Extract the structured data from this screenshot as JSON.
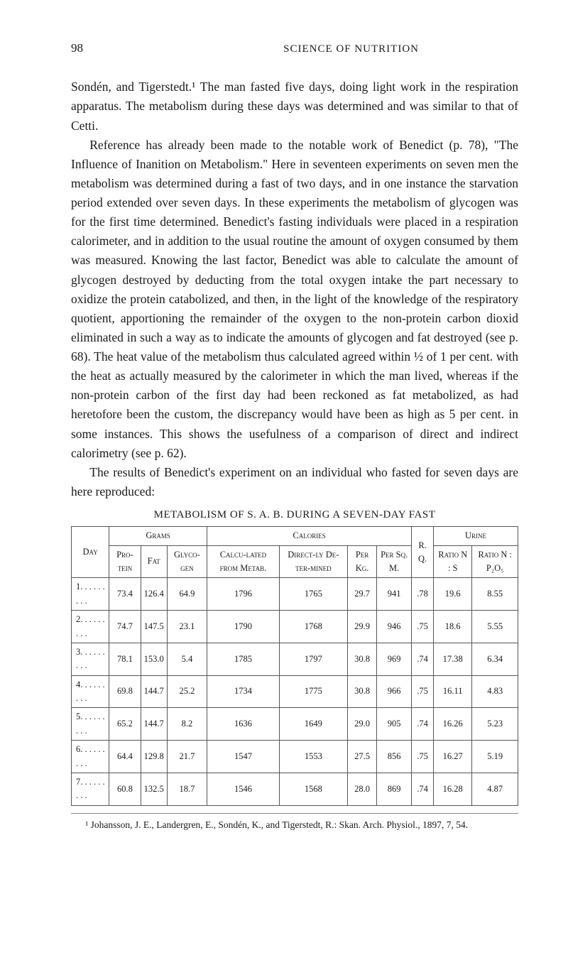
{
  "page_number": "98",
  "running_head": "SCIENCE OF NUTRITION",
  "paragraphs": {
    "p1": "Sondén, and Tigerstedt.¹ The man fasted five days, doing light work in the respiration apparatus. The metabolism during these days was determined and was similar to that of Cetti.",
    "p2": "Reference has already been made to the notable work of Benedict (p. 78), \"The Influence of Inanition on Metabolism.\" Here in seventeen experiments on seven men the metabolism was determined during a fast of two days, and in one instance the starvation period extended over seven days. In these experiments the metabolism of glycogen was for the first time determined. Benedict's fasting individuals were placed in a respiration calorimeter, and in addition to the usual routine the amount of oxygen consumed by them was measured. Knowing the last factor, Benedict was able to calculate the amount of glycogen destroyed by deducting from the total oxygen intake the part necessary to oxidize the protein catabolized, and then, in the light of the knowledge of the respiratory quotient, apportioning the remainder of the oxygen to the non-protein carbon dioxid eliminated in such a way as to indicate the amounts of glycogen and fat destroyed (see p. 68). The heat value of the metabolism thus calculated agreed within ½ of 1 per cent. with the heat as actually measured by the calorimeter in which the man lived, whereas if the non-protein carbon of the first day had been reckoned as fat metabolized, as had heretofore been the custom, the discrepancy would have been as high as 5 per cent. in some instances. This shows the usefulness of a comparison of direct and indirect calorimetry (see p. 62).",
    "p3": "The results of Benedict's experiment on an individual who fasted for seven days are here reproduced:"
  },
  "table_title": "METABOLISM OF S. A. B. DURING A SEVEN-DAY FAST",
  "table": {
    "group_headers": {
      "grams": "Grams",
      "calories": "Calories",
      "urine": "Urine"
    },
    "columns": {
      "day": "Day",
      "protein": "Pro-tein",
      "fat": "Fat",
      "glycogen": "Glyco-gen",
      "calc": "Calcu-lated from Metab.",
      "direct": "Direct-ly De-ter-mined",
      "perkg": "Per Kg.",
      "persqm": "Per Sq. M.",
      "rq": "R. Q.",
      "ratio_ns": "Ratio N : S",
      "ratio_np": "Ratio N : P₂O₅"
    },
    "rows": [
      {
        "day": "1. . . . . . . . .",
        "protein": "73.4",
        "fat": "126.4",
        "glycogen": "64.9",
        "calc": "1796",
        "direct": "1765",
        "perkg": "29.7",
        "persqm": "941",
        "rq": ".78",
        "ns": "19.6",
        "np": "8.55"
      },
      {
        "day": "2. . . . . . . . .",
        "protein": "74.7",
        "fat": "147.5",
        "glycogen": "23.1",
        "calc": "1790",
        "direct": "1768",
        "perkg": "29.9",
        "persqm": "946",
        "rq": ".75",
        "ns": "18.6",
        "np": "5.55"
      },
      {
        "day": "3. . . . . . . . .",
        "protein": "78.1",
        "fat": "153.0",
        "glycogen": "5.4",
        "calc": "1785",
        "direct": "1797",
        "perkg": "30.8",
        "persqm": "969",
        "rq": ".74",
        "ns": "17.38",
        "np": "6.34"
      },
      {
        "day": "4. . . . . . . . .",
        "protein": "69.8",
        "fat": "144.7",
        "glycogen": "25.2",
        "calc": "1734",
        "direct": "1775",
        "perkg": "30.8",
        "persqm": "966",
        "rq": ".75",
        "ns": "16.11",
        "np": "4.83"
      },
      {
        "day": "5. . . . . . . . .",
        "protein": "65.2",
        "fat": "144.7",
        "glycogen": "8.2",
        "calc": "1636",
        "direct": "1649",
        "perkg": "29.0",
        "persqm": "905",
        "rq": ".74",
        "ns": "16.26",
        "np": "5.23"
      },
      {
        "day": "6. . . . . . . . .",
        "protein": "64.4",
        "fat": "129.8",
        "glycogen": "21.7",
        "calc": "1547",
        "direct": "1553",
        "perkg": "27.5",
        "persqm": "856",
        "rq": ".75",
        "ns": "16.27",
        "np": "5.19"
      },
      {
        "day": "7. . . . . . . . .",
        "protein": "60.8",
        "fat": "132.5",
        "glycogen": "18.7",
        "calc": "1546",
        "direct": "1568",
        "perkg": "28.0",
        "persqm": "869",
        "rq": ".74",
        "ns": "16.28",
        "np": "4.87"
      }
    ]
  },
  "footnote": "¹ Johansson, J. E., Landergren, E., Sondén, K., and Tigerstedt, R.: Skan. Arch. Physiol., 1897, 7, 54."
}
